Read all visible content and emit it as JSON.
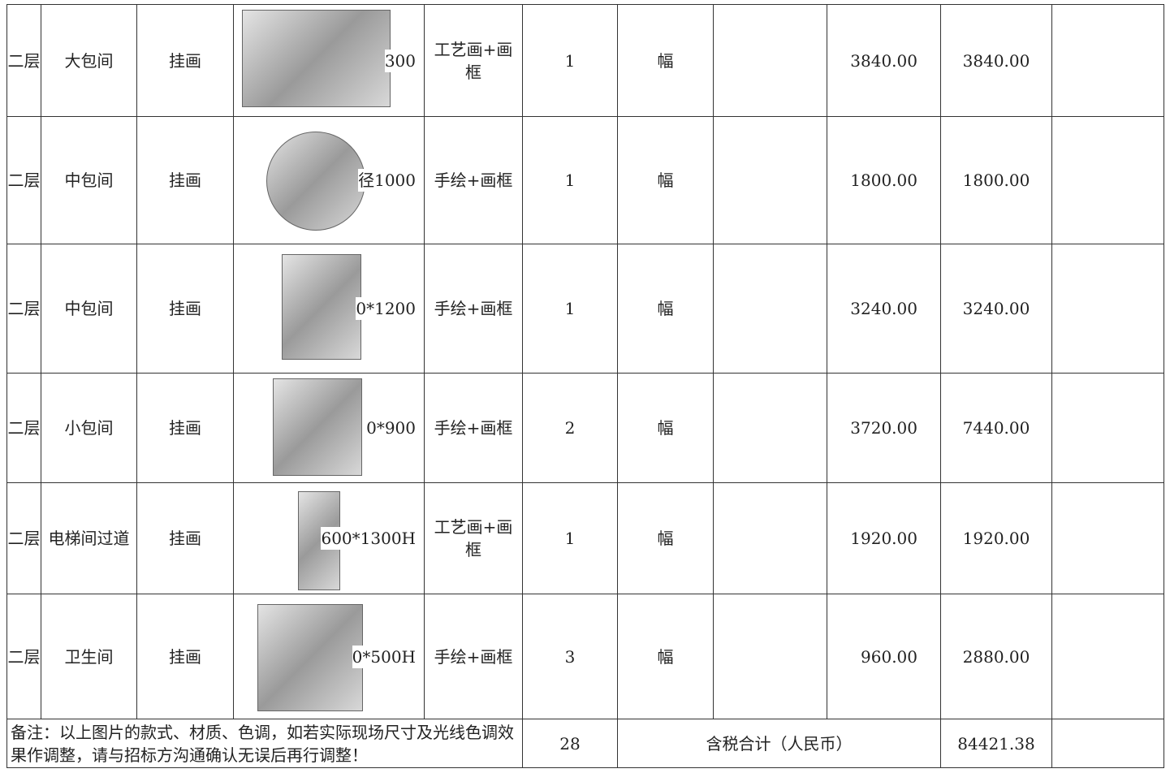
{
  "table": {
    "rows": [
      {
        "floor": "二层",
        "room": "大包间",
        "item": "挂画",
        "size": "300",
        "material": "工艺画+画框",
        "quantity": 1,
        "unit": "幅",
        "unit_price": "3840.00",
        "total": "3840.00"
      },
      {
        "floor": "二层",
        "room": "中包间",
        "item": "挂画",
        "size": "径1000",
        "material": "手绘+画框",
        "quantity": 1,
        "unit": "幅",
        "unit_price": "1800.00",
        "total": "1800.00"
      },
      {
        "floor": "二层",
        "room": "中包间",
        "item": "挂画",
        "size": "0*1200",
        "material": "手绘+画框",
        "quantity": 1,
        "unit": "幅",
        "unit_price": "3240.00",
        "total": "3240.00"
      },
      {
        "floor": "二层",
        "room": "小包间",
        "item": "挂画",
        "size": "0*900",
        "material": "手绘+画框",
        "quantity": 2,
        "unit": "幅",
        "unit_price": "3720.00",
        "total": "7440.00"
      },
      {
        "floor": "二层",
        "room": "电梯间过道",
        "item": "挂画",
        "size": "600*1300H",
        "material": "工艺画+画框",
        "quantity": 1,
        "unit": "幅",
        "unit_price": "1920.00",
        "total": "1920.00"
      },
      {
        "floor": "二层",
        "room": "卫生间",
        "item": "挂画",
        "size": "0*500H",
        "material": "手绘+画框",
        "quantity": 3,
        "unit": "幅",
        "unit_price": "960.00",
        "total": "2880.00"
      }
    ],
    "footer": {
      "note": "备注：以上图片的款式、材质、色调，如若实际现场尺寸及光线色调效果作调整，请与招标方沟通确认无误后再行调整！",
      "quantity": 28,
      "label": "含税合计（人民币）",
      "total": "84421.38"
    }
  }
}
